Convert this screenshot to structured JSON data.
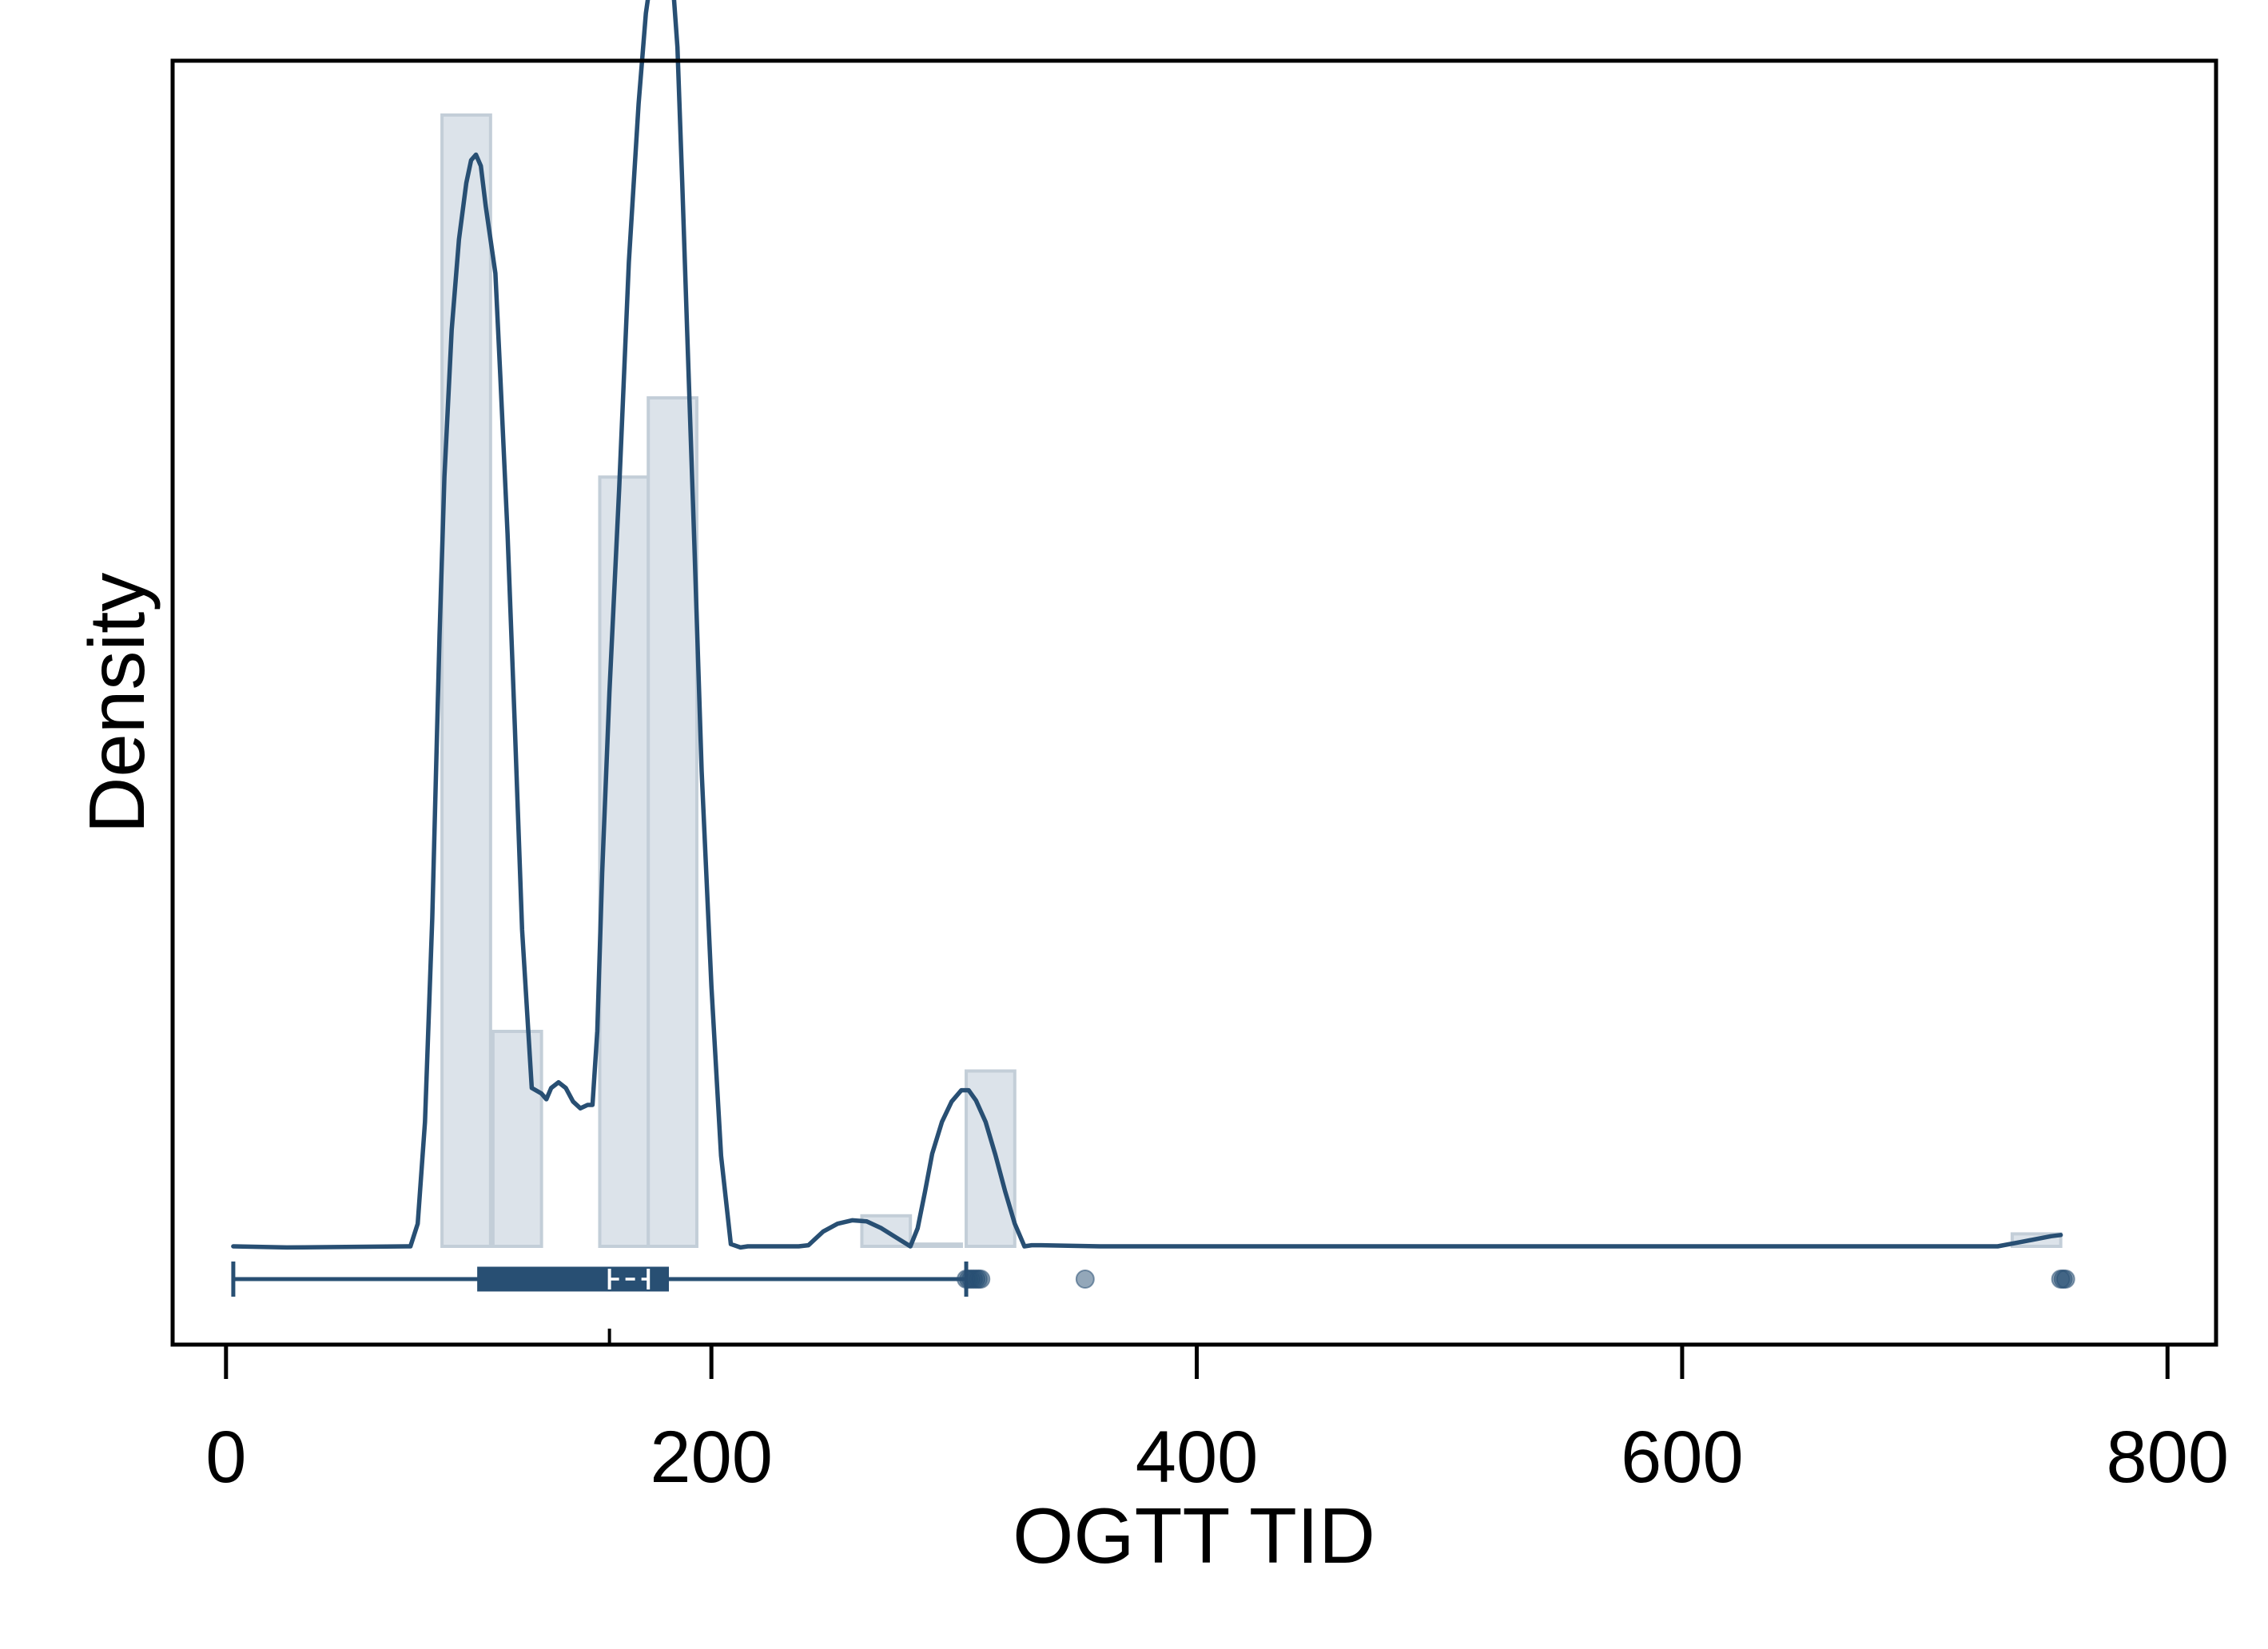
{
  "chart_data": {
    "type": "histogram",
    "xlabel": "OGTT TID",
    "ylabel": "Density",
    "xlim": [
      -22,
      820
    ],
    "x_ticks": [
      0,
      200,
      400,
      600,
      800
    ],
    "x_tick_labels": [
      "0",
      "200",
      "400",
      "600",
      "800"
    ],
    "y_ticks_shown": false,
    "grid": false,
    "legend": "none",
    "colors": {
      "histogram_fill": "#dce3ea",
      "histogram_edge": "#c3ced8",
      "density_line": "#284f73",
      "boxplot": "#284f73",
      "outlier": "#284f73",
      "median_marker": "#ffffff"
    },
    "histogram": {
      "bins": [
        {
          "start": 89,
          "end": 109,
          "density": 1.0
        },
        {
          "start": 110,
          "end": 130,
          "density": 0.19
        },
        {
          "start": 154,
          "end": 174,
          "density": 0.68
        },
        {
          "start": 174,
          "end": 194,
          "density": 0.75
        },
        {
          "start": 262,
          "end": 282,
          "density": 0.027
        },
        {
          "start": 282,
          "end": 303,
          "density": 0.002
        },
        {
          "start": 305,
          "end": 325,
          "density": 0.155
        },
        {
          "start": 736,
          "end": 756,
          "density": 0.011
        }
      ]
    },
    "density_curve": {
      "x": [
        3,
        25,
        76,
        79,
        82,
        85,
        88,
        90,
        93,
        96,
        99,
        101,
        103,
        105,
        107,
        111,
        113,
        116,
        119,
        122,
        126,
        130,
        132,
        134,
        137,
        140,
        143,
        146,
        149,
        151,
        153,
        155,
        158,
        162,
        166,
        170,
        173,
        175,
        177,
        178,
        179,
        180,
        182,
        184,
        186,
        188,
        190,
        193,
        196,
        200,
        204,
        208,
        212,
        215,
        236,
        240,
        246,
        252,
        258,
        264,
        270,
        276,
        282,
        285,
        288,
        291,
        295,
        299,
        303,
        306,
        309,
        313,
        317,
        321,
        325,
        329,
        332,
        336,
        360,
        400,
        500,
        600,
        700,
        730,
        740,
        752,
        756
      ],
      "y": [
        0.0,
        -0.001,
        0.0,
        0.02,
        0.11,
        0.29,
        0.54,
        0.68,
        0.81,
        0.89,
        0.94,
        0.96,
        0.965,
        0.955,
        0.92,
        0.86,
        0.77,
        0.63,
        0.46,
        0.28,
        0.14,
        0.135,
        0.13,
        0.14,
        0.145,
        0.14,
        0.128,
        0.122,
        0.125,
        0.125,
        0.19,
        0.33,
        0.49,
        0.67,
        0.87,
        1.01,
        1.09,
        1.12,
        1.143,
        1.147,
        1.15,
        1.147,
        1.14,
        1.12,
        1.06,
        0.94,
        0.81,
        0.62,
        0.42,
        0.23,
        0.08,
        0.002,
        -0.001,
        0.0,
        0.0,
        0.001,
        0.013,
        0.02,
        0.023,
        0.022,
        0.016,
        0.008,
        0.0,
        0.016,
        0.048,
        0.082,
        0.11,
        0.128,
        0.138,
        0.138,
        0.129,
        0.11,
        0.081,
        0.049,
        0.02,
        0.0,
        0.001,
        0.001,
        0.0,
        0.0,
        0.0,
        0.0,
        0.0,
        0.0,
        0.004,
        0.009,
        0.01
      ]
    },
    "boxplot": {
      "whisker_low": 3,
      "q1": 104,
      "median": 158,
      "q3": 182,
      "whisker_high": 305,
      "mean_marks": [
        158,
        174
      ],
      "outliers": [
        305,
        306,
        307,
        308,
        309,
        310,
        311,
        354,
        756,
        757,
        758
      ]
    }
  }
}
